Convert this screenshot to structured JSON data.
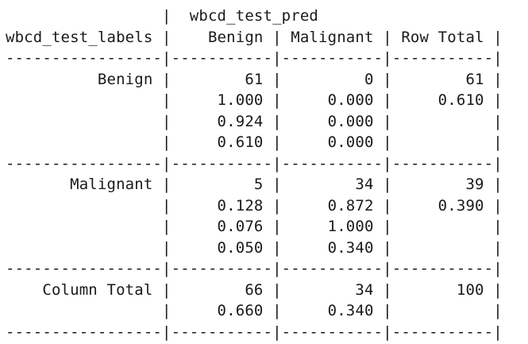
{
  "table": {
    "lines": [
      "                 |  wbcd_test_pred",
      "wbcd_test_labels |    Benign | Malignant | Row Total |",
      "-----------------|-----------|-----------|-----------|",
      "          Benign |        61 |         0 |        61 |",
      "                 |     1.000 |     0.000 |     0.610 |",
      "                 |     0.924 |     0.000 |           |",
      "                 |     0.610 |     0.000 |           |",
      "-----------------|-----------|-----------|-----------|",
      "       Malignant |         5 |        34 |        39 |",
      "                 |     0.128 |     0.872 |     0.390 |",
      "                 |     0.076 |     1.000 |           |",
      "                 |     0.050 |     0.340 |           |",
      "-----------------|-----------|-----------|-----------|",
      "    Column Total |        66 |        34 |       100 |",
      "                 |     0.660 |     0.340 |           |",
      "-----------------|-----------|-----------|-----------|"
    ]
  }
}
